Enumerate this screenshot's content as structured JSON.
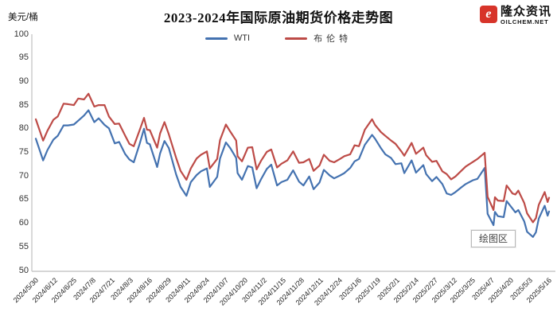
{
  "header": {
    "unit_label": "美元/桶",
    "title": "2023-2024年国际原油期货价格走势图",
    "logo": {
      "brand": "隆众资讯",
      "domain": "OILCHEM.NET",
      "icon_letter": "e",
      "brand_color": "#d7342a"
    }
  },
  "tooltip": {
    "label": "绘图区"
  },
  "chart_data": {
    "type": "line",
    "title": "2023-2024年国际原油期货价格走势图",
    "ylabel": "美元/桶",
    "ylim": [
      50,
      100
    ],
    "ytick_step": 5,
    "yticks": [
      100,
      95,
      90,
      85,
      80,
      75,
      70,
      65,
      60,
      55,
      50
    ],
    "grid": false,
    "legend_position": "top-center",
    "x_tick_labels": [
      "2024/5/30",
      "2024/6/12",
      "2024/6/25",
      "2024/7/8",
      "2024/7/21",
      "2024/8/3",
      "2024/8/16",
      "2024/8/29",
      "2024/9/11",
      "2024/9/24",
      "2024/10/7",
      "2024/10/20",
      "2024/11/2",
      "2024/11/15",
      "2024/11/28",
      "2024/12/11",
      "2024/12/24",
      "2025/1/6",
      "2025/1/19",
      "2025/2/1",
      "2025/2/14",
      "2025/2/27",
      "2025/3/12",
      "2025/3/25",
      "2025/4/7",
      "2025/4/20",
      "2025/5/3",
      "2025/5/16"
    ],
    "x_label_interval_days": 13,
    "x_total_days": 351,
    "axis_color": "#c9c9c9",
    "x_days": [
      0,
      5,
      8,
      12,
      15,
      19,
      22,
      26,
      29,
      33,
      36,
      40,
      43,
      47,
      50,
      54,
      57,
      61,
      64,
      67,
      71,
      74,
      76,
      78,
      83,
      85,
      88,
      91,
      96,
      99,
      103,
      106,
      110,
      113,
      117,
      119,
      124,
      126,
      130,
      133,
      137,
      138,
      141,
      145,
      148,
      151,
      154,
      158,
      161,
      165,
      168,
      172,
      176,
      180,
      183,
      187,
      190,
      194,
      197,
      201,
      204,
      208,
      211,
      215,
      218,
      221,
      225,
      230,
      232,
      236,
      239,
      243,
      246,
      250,
      252,
      257,
      260,
      265,
      267,
      271,
      274,
      278,
      281,
      284,
      287,
      291,
      294,
      299,
      302,
      307,
      309,
      313,
      314,
      316,
      320,
      322,
      326,
      328,
      330,
      334,
      336,
      340,
      342,
      344,
      348,
      350,
      351
    ],
    "series": [
      {
        "name": "WTI",
        "color": "#4472b0",
        "values": [
          77.9,
          73.3,
          75.5,
          77.7,
          78.5,
          80.7,
          80.7,
          80.9,
          81.7,
          82.8,
          83.9,
          81.4,
          82.2,
          80.8,
          80.1,
          76.9,
          77.2,
          74.7,
          73.5,
          72.9,
          76.8,
          80.0,
          77.0,
          76.7,
          71.9,
          74.8,
          77.4,
          75.9,
          70.3,
          67.7,
          65.8,
          68.7,
          70.2,
          71.0,
          71.6,
          67.7,
          69.8,
          73.7,
          77.1,
          75.9,
          73.8,
          70.6,
          69.2,
          72.1,
          71.8,
          67.4,
          69.3,
          71.5,
          72.4,
          68.0,
          68.7,
          69.2,
          71.2,
          68.8,
          68.0,
          69.9,
          67.2,
          68.6,
          71.3,
          70.1,
          69.5,
          70.1,
          70.6,
          71.7,
          73.1,
          73.6,
          76.6,
          78.7,
          77.9,
          75.9,
          74.6,
          73.8,
          72.5,
          72.7,
          70.6,
          73.3,
          70.7,
          72.3,
          70.4,
          68.9,
          69.8,
          68.3,
          66.3,
          66.0,
          66.6,
          67.6,
          68.3,
          69.1,
          69.4,
          71.7,
          62.0,
          59.6,
          62.4,
          61.5,
          61.3,
          64.7,
          63.1,
          62.3,
          62.8,
          60.4,
          58.2,
          57.1,
          58.1,
          61.0,
          63.7,
          61.6,
          62.5
        ]
      },
      {
        "name": "布伦特",
        "color": "#bd4b47",
        "values": [
          82.0,
          77.5,
          79.6,
          81.9,
          82.6,
          85.3,
          85.2,
          85.0,
          86.4,
          86.2,
          87.4,
          84.7,
          85.0,
          85.0,
          82.6,
          81.0,
          81.1,
          78.6,
          76.8,
          76.3,
          79.7,
          82.3,
          79.8,
          79.7,
          76.0,
          79.0,
          81.4,
          78.8,
          73.8,
          71.1,
          69.2,
          71.6,
          73.7,
          74.5,
          75.2,
          71.6,
          73.6,
          77.6,
          80.9,
          79.4,
          77.5,
          74.2,
          73.1,
          76.0,
          76.1,
          71.4,
          73.2,
          75.1,
          75.6,
          71.8,
          72.6,
          73.3,
          75.2,
          72.8,
          72.9,
          73.6,
          71.1,
          72.2,
          74.5,
          73.2,
          72.9,
          73.6,
          74.2,
          74.6,
          76.5,
          76.3,
          79.8,
          82.0,
          80.8,
          79.3,
          78.5,
          77.5,
          76.8,
          75.2,
          74.3,
          77.0,
          74.7,
          76.0,
          74.4,
          73.0,
          73.2,
          71.0,
          70.4,
          69.3,
          69.9,
          71.1,
          72.0,
          73.0,
          73.6,
          74.9,
          65.6,
          62.8,
          65.5,
          64.8,
          64.7,
          68.0,
          66.3,
          66.1,
          66.9,
          64.3,
          62.1,
          60.2,
          61.1,
          63.9,
          66.6,
          64.5,
          65.4
        ]
      }
    ]
  }
}
